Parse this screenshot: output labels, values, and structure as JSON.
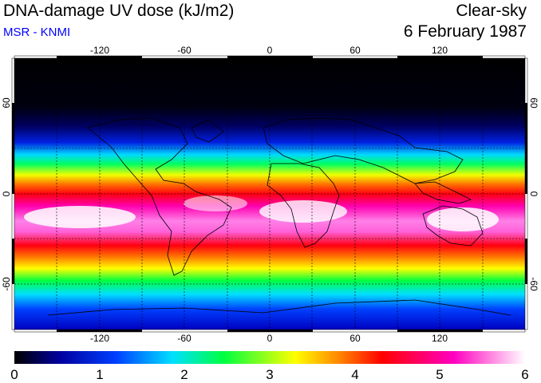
{
  "header": {
    "title": "DNA-damage UV dose (kJ/m2)",
    "credit": "MSR - KNMI",
    "sky_type": "Clear-sky",
    "date": "6 February 1987"
  },
  "map": {
    "lon_ticks": [
      "-120",
      "-60",
      "0",
      "60",
      "120"
    ],
    "lat_ticks": [
      "60",
      "0",
      "-60"
    ],
    "gridlines": "dashed",
    "coastlines": "black"
  },
  "colorbar": {
    "labels": [
      "0",
      "1",
      "2",
      "3",
      "4",
      "5",
      "6"
    ],
    "range": [
      0,
      6
    ],
    "palette": [
      "#000000",
      "#0000a0",
      "#0040ff",
      "#00e0ff",
      "#00ff40",
      "#ffff00",
      "#ff8000",
      "#ff0000",
      "#ff00c0",
      "#ffffff"
    ]
  }
}
